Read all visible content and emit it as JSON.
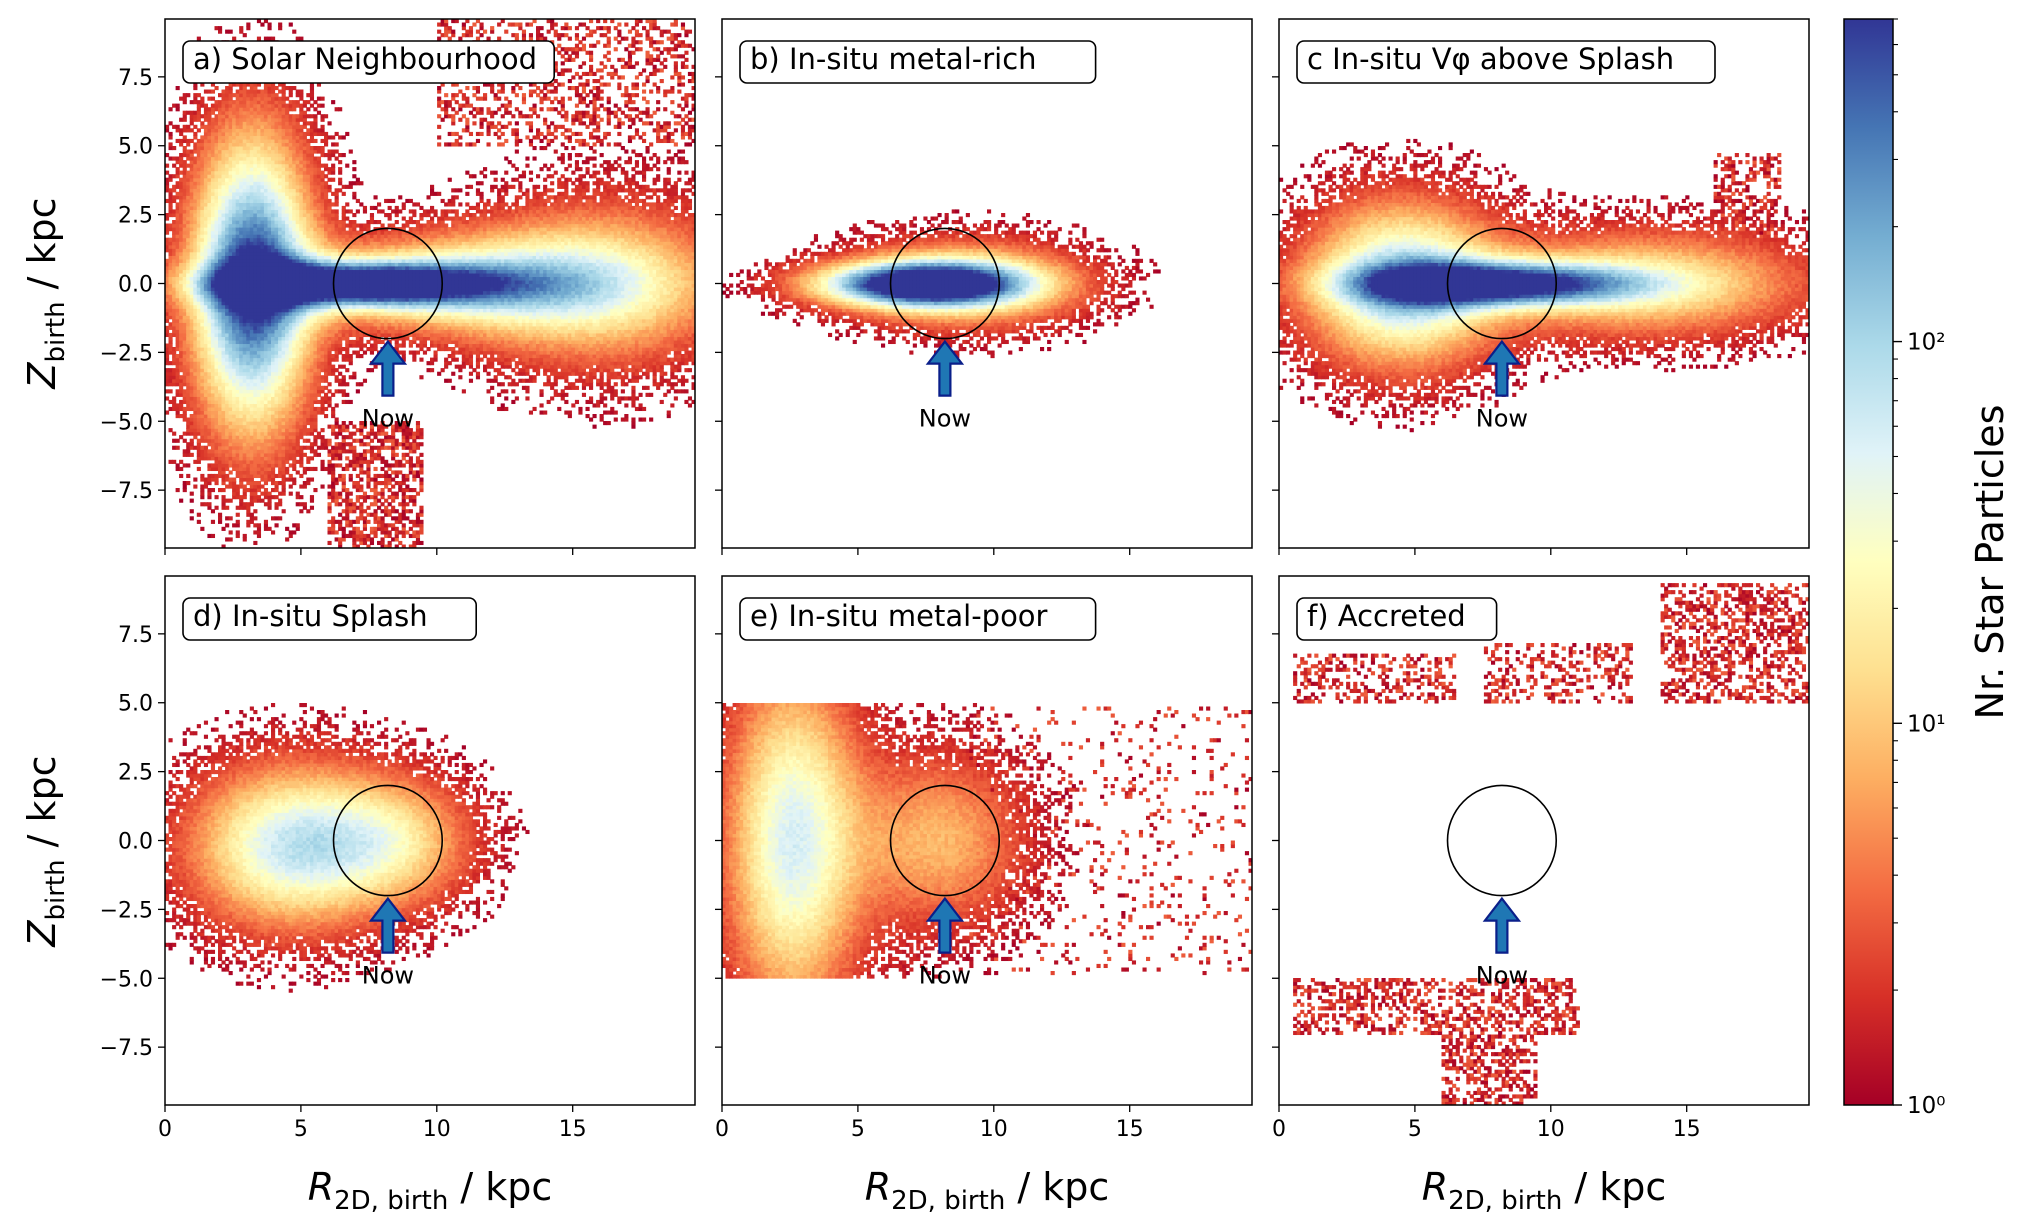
{
  "figure": {
    "ylabel": "Z_birth / kpc",
    "xlabel": "R_2D,birth / kpc",
    "arrow_label": "Now",
    "colorbar_label": "Nr. Star Particles"
  },
  "chart_data": [
    {
      "type": "heatmap",
      "title": "a) Solar Neighbourhood",
      "xlim": [
        0,
        19.5
      ],
      "ylim": [
        -9.6,
        9.6
      ],
      "xticks": [
        "0",
        "5",
        "10",
        "15"
      ],
      "yticks": [
        "7.5",
        "5.0",
        "2.5",
        "0.0",
        "−2.5",
        "−5.0",
        "−7.5"
      ],
      "circle": {
        "x": 8.2,
        "y": 0.0,
        "r": 2.0
      },
      "blobs": [
        {
          "cx": 3.2,
          "cy": 0.0,
          "sx": 1.5,
          "sy": 3.6,
          "peak": 1.0
        },
        {
          "cx": 7.0,
          "cy": 0.0,
          "sx": 3.4,
          "sy": 0.55,
          "peak": 1.0
        },
        {
          "cx": 11.5,
          "cy": 0.0,
          "sx": 4.5,
          "sy": 1.2,
          "peak": 0.55
        },
        {
          "cx": 16.0,
          "cy": 0.0,
          "sx": 3.2,
          "sy": 2.2,
          "peak": 0.35
        }
      ],
      "sparse_regions": [
        {
          "x0": 10.0,
          "x1": 19.5,
          "y0": 5.0,
          "y1": 9.6,
          "density": 0.35
        },
        {
          "x0": 6.0,
          "x1": 9.5,
          "y0": -9.6,
          "y1": -5.0,
          "density": 0.55
        }
      ]
    },
    {
      "type": "heatmap",
      "title": "b) In-situ metal-rich",
      "xlim": [
        0,
        19.5
      ],
      "ylim": [
        -9.6,
        9.6
      ],
      "xticks": [
        "0",
        "5",
        "10",
        "15"
      ],
      "circle": {
        "x": 8.2,
        "y": 0.0,
        "r": 2.0
      },
      "blobs": [
        {
          "cx": 7.2,
          "cy": 0.0,
          "sx": 2.6,
          "sy": 0.55,
          "peak": 1.0
        },
        {
          "cx": 9.0,
          "cy": 0.0,
          "sx": 2.8,
          "sy": 1.05,
          "peak": 0.5
        }
      ],
      "sparse_regions": []
    },
    {
      "type": "heatmap",
      "title": "c In-situ Vφ above Splash",
      "xlim": [
        0,
        19.5
      ],
      "ylim": [
        -9.6,
        9.6
      ],
      "xticks": [
        "0",
        "5",
        "10",
        "15"
      ],
      "circle": {
        "x": 8.2,
        "y": 0.0,
        "r": 2.0
      },
      "blobs": [
        {
          "cx": 4.5,
          "cy": 0.0,
          "sx": 2.4,
          "sy": 2.0,
          "peak": 0.7
        },
        {
          "cx": 8.0,
          "cy": 0.0,
          "sx": 3.4,
          "sy": 0.55,
          "peak": 0.9
        },
        {
          "cx": 13.5,
          "cy": 0.0,
          "sx": 4.0,
          "sy": 1.3,
          "peak": 0.45
        }
      ],
      "sparse_regions": [
        {
          "x0": 16.0,
          "x1": 18.5,
          "y0": 1.5,
          "y1": 4.8,
          "density": 0.35
        }
      ]
    },
    {
      "type": "heatmap",
      "title": "d) In-situ Splash",
      "xlim": [
        0,
        19.5
      ],
      "ylim": [
        -9.6,
        9.6
      ],
      "xticks": [
        "0",
        "5",
        "10",
        "15"
      ],
      "yticks": [
        "7.5",
        "5.0",
        "2.5",
        "0.0",
        "−2.5",
        "−5.0",
        "−7.5"
      ],
      "circle": {
        "x": 8.2,
        "y": 0.0,
        "r": 2.0
      },
      "blobs": [
        {
          "cx": 4.6,
          "cy": -0.2,
          "sx": 2.5,
          "sy": 2.0,
          "peak": 0.62
        },
        {
          "cx": 8.5,
          "cy": 0.0,
          "sx": 2.0,
          "sy": 1.6,
          "peak": 0.35
        }
      ],
      "sparse_regions": []
    },
    {
      "type": "heatmap",
      "title": "e) In-situ metal-poor",
      "xlim": [
        0,
        19.5
      ],
      "ylim": [
        -9.6,
        9.6
      ],
      "xticks": [
        "0",
        "5",
        "10",
        "15"
      ],
      "circle": {
        "x": 8.2,
        "y": 0.0,
        "r": 2.0
      },
      "clip": {
        "y0": -4.95,
        "y1": 4.95
      },
      "blobs": [
        {
          "cx": 2.6,
          "cy": 0.0,
          "sx": 1.7,
          "sy": 4.2,
          "peak": 0.6
        },
        {
          "cx": 8.0,
          "cy": 0.0,
          "sx": 2.2,
          "sy": 2.2,
          "peak": 0.32
        }
      ],
      "sparse_regions": [
        {
          "x0": 9.0,
          "x1": 19.5,
          "y0": -4.9,
          "y1": 4.9,
          "density": 0.08
        }
      ]
    },
    {
      "type": "heatmap",
      "title": "f) Accreted",
      "xlim": [
        0,
        19.5
      ],
      "ylim": [
        -9.6,
        9.6
      ],
      "xticks": [
        "0",
        "5",
        "10",
        "15"
      ],
      "circle": {
        "x": 8.2,
        "y": 0.0,
        "r": 2.0,
        "filled": true
      },
      "blobs": [],
      "sparse_regions": [
        {
          "x0": 0.5,
          "x1": 6.5,
          "y0": 5.0,
          "y1": 6.8,
          "density": 0.35
        },
        {
          "x0": 7.5,
          "x1": 13.0,
          "y0": 5.0,
          "y1": 7.2,
          "density": 0.3
        },
        {
          "x0": 14.0,
          "x1": 19.5,
          "y0": 5.0,
          "y1": 9.4,
          "density": 0.42
        },
        {
          "x0": 0.5,
          "x1": 11.0,
          "y0": -7.0,
          "y1": -5.0,
          "density": 0.45
        },
        {
          "x0": 6.0,
          "x1": 9.5,
          "y0": -9.6,
          "y1": -7.0,
          "density": 0.45
        }
      ]
    }
  ],
  "colorbar": {
    "scale": "log",
    "range": [
      1,
      700
    ],
    "ticks": [
      {
        "value": 1,
        "label": "10⁰"
      },
      {
        "value": 10,
        "label": "10¹"
      },
      {
        "value": 100,
        "label": "10²"
      }
    ],
    "colors": [
      "#a50026",
      "#d73027",
      "#f46d43",
      "#fdae61",
      "#fee090",
      "#ffffbf",
      "#e0f3f8",
      "#abd9e9",
      "#74add1",
      "#4575b4",
      "#313695"
    ]
  }
}
